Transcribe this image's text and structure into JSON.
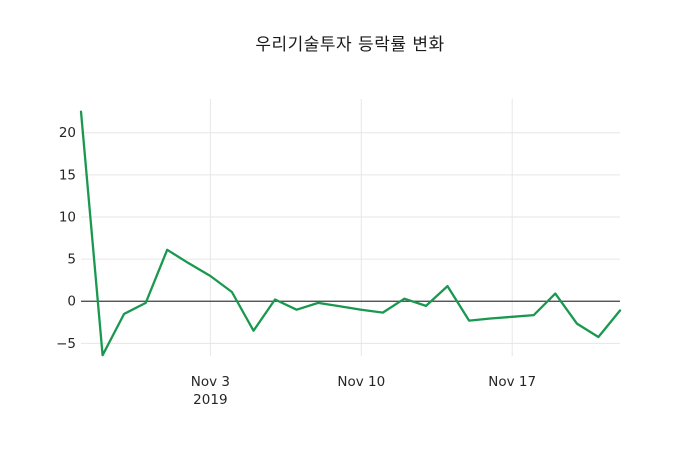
{
  "title": "우리기술투자 등락률 변화",
  "chart_data": {
    "type": "line",
    "title": "우리기술투자 등락률 변화",
    "series": [
      {
        "name": "등락률",
        "color": "#1a9850",
        "values": [
          22.5,
          -6.4,
          -1.5,
          -0.2,
          6.1,
          4.5,
          3.0,
          1.1,
          -3.5,
          0.2,
          -1.0,
          -0.2,
          -0.6,
          -1.0,
          -1.35,
          0.3,
          -0.55,
          1.8,
          -2.3,
          -2.05,
          -1.85,
          -1.65,
          0.9,
          -2.65,
          -4.25,
          -1.1
        ]
      }
    ],
    "x_ticks": [
      {
        "index": 6,
        "label": "Nov 3",
        "sublabel": "2019"
      },
      {
        "index": 13,
        "label": "Nov 10",
        "sublabel": ""
      },
      {
        "index": 20,
        "label": "Nov 17",
        "sublabel": ""
      }
    ],
    "y_ticks": [
      {
        "value": 20,
        "label": "20"
      },
      {
        "value": 15,
        "label": "15"
      },
      {
        "value": 10,
        "label": "10"
      },
      {
        "value": 5,
        "label": "5"
      },
      {
        "value": 0,
        "label": "0"
      },
      {
        "value": -5,
        "label": "−5"
      }
    ],
    "ylim": [
      -6.5,
      24.0
    ],
    "grid": true,
    "zero_line": true,
    "legend_position": "none",
    "colors": {
      "line": "#1a9850",
      "grid": "#e6e6e6",
      "zero_line": "#3d3d3d",
      "tick_text": "#262626",
      "background": "#ffffff"
    }
  }
}
